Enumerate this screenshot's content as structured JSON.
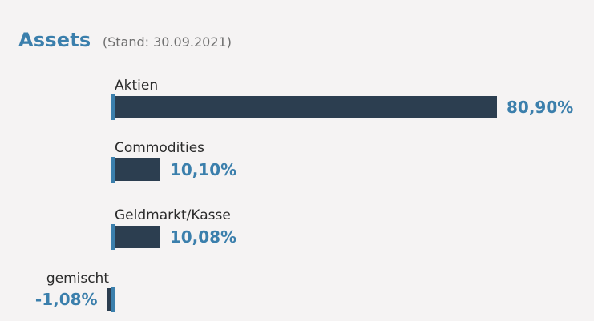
{
  "header": {
    "title": "Assets",
    "subtitle": "(Stand: 30.09.2021)"
  },
  "chart_data": {
    "type": "bar",
    "orientation": "horizontal",
    "title": "Assets",
    "subtitle": "(Stand: 30.09.2021)",
    "categories": [
      "Aktien",
      "Commodities",
      "Geldmarkt/Kasse",
      "gemischt"
    ],
    "values": [
      80.9,
      10.1,
      10.08,
      -1.08
    ],
    "value_labels": [
      "80,90%",
      "10,10%",
      "10,08%",
      "-1,08%"
    ],
    "xlabel": "",
    "ylabel": "",
    "unit": "%",
    "grid": false,
    "legend": "none"
  },
  "colors": {
    "accent": "#3b7fac",
    "bar": "#2c3e50",
    "background": "#f5f3f3",
    "text": "#2a2a2a"
  }
}
